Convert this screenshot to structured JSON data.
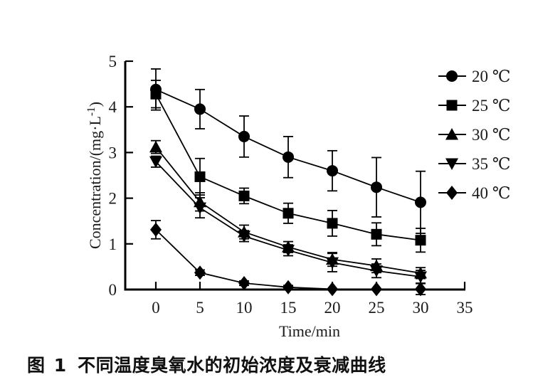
{
  "page": {
    "background": "#ffffff",
    "ink_color": "#000000"
  },
  "caption": {
    "prefix": "图 1",
    "text": "不同温度臭氧水的初始浓度及衰减曲线"
  },
  "chart_data": {
    "type": "line",
    "title": "",
    "xlabel": "Time/min",
    "ylabel": "Concentration/(mg·L⁻¹)",
    "ylabel_parts": {
      "main": "Concentration/(mg·L",
      "sup": "-1",
      "close": ")"
    },
    "x": [
      0,
      5,
      10,
      15,
      20,
      25,
      30
    ],
    "xticks": [
      "0",
      "5",
      "10",
      "15",
      "20",
      "25",
      "30",
      "35"
    ],
    "xtick_values": [
      0,
      5,
      10,
      15,
      20,
      25,
      30,
      35
    ],
    "yticks": [
      "0",
      "1",
      "2",
      "3",
      "4",
      "5"
    ],
    "ytick_values": [
      0,
      1,
      2,
      3,
      4,
      5
    ],
    "xlim": [
      -3.5,
      35.3
    ],
    "ylim": [
      0,
      5
    ],
    "grid": false,
    "legend_position": "right",
    "series_color": "#000000",
    "series": [
      {
        "name": "20 ℃",
        "marker": "circle",
        "values": [
          4.38,
          3.95,
          3.35,
          2.9,
          2.6,
          2.24,
          1.91
        ],
        "errors": [
          0.45,
          0.43,
          0.45,
          0.45,
          0.44,
          0.65,
          0.68
        ]
      },
      {
        "name": "25 ℃",
        "marker": "square",
        "values": [
          4.28,
          2.47,
          2.05,
          1.67,
          1.45,
          1.21,
          1.08
        ],
        "errors": [
          0.3,
          0.4,
          0.17,
          0.22,
          0.28,
          0.25,
          0.26
        ]
      },
      {
        "name": "30 ℃",
        "marker": "triangle-up",
        "values": [
          3.12,
          1.92,
          1.26,
          0.93,
          0.66,
          0.52,
          0.36
        ],
        "errors": [
          0.14,
          0.2,
          0.15,
          0.12,
          0.15,
          0.15,
          0.12
        ]
      },
      {
        "name": "35 ℃",
        "marker": "triangle-down",
        "values": [
          2.8,
          1.79,
          1.17,
          0.86,
          0.59,
          0.41,
          0.28
        ],
        "errors": [
          0.12,
          0.22,
          0.12,
          0.12,
          0.2,
          0.15,
          0.14
        ]
      },
      {
        "name": "40 ℃",
        "marker": "diamond",
        "values": [
          1.31,
          0.37,
          0.14,
          0.05,
          0.01,
          0.01,
          0.01
        ],
        "errors": [
          0.2,
          0.06,
          0.05,
          0.04,
          0,
          0,
          0.12
        ]
      }
    ]
  }
}
